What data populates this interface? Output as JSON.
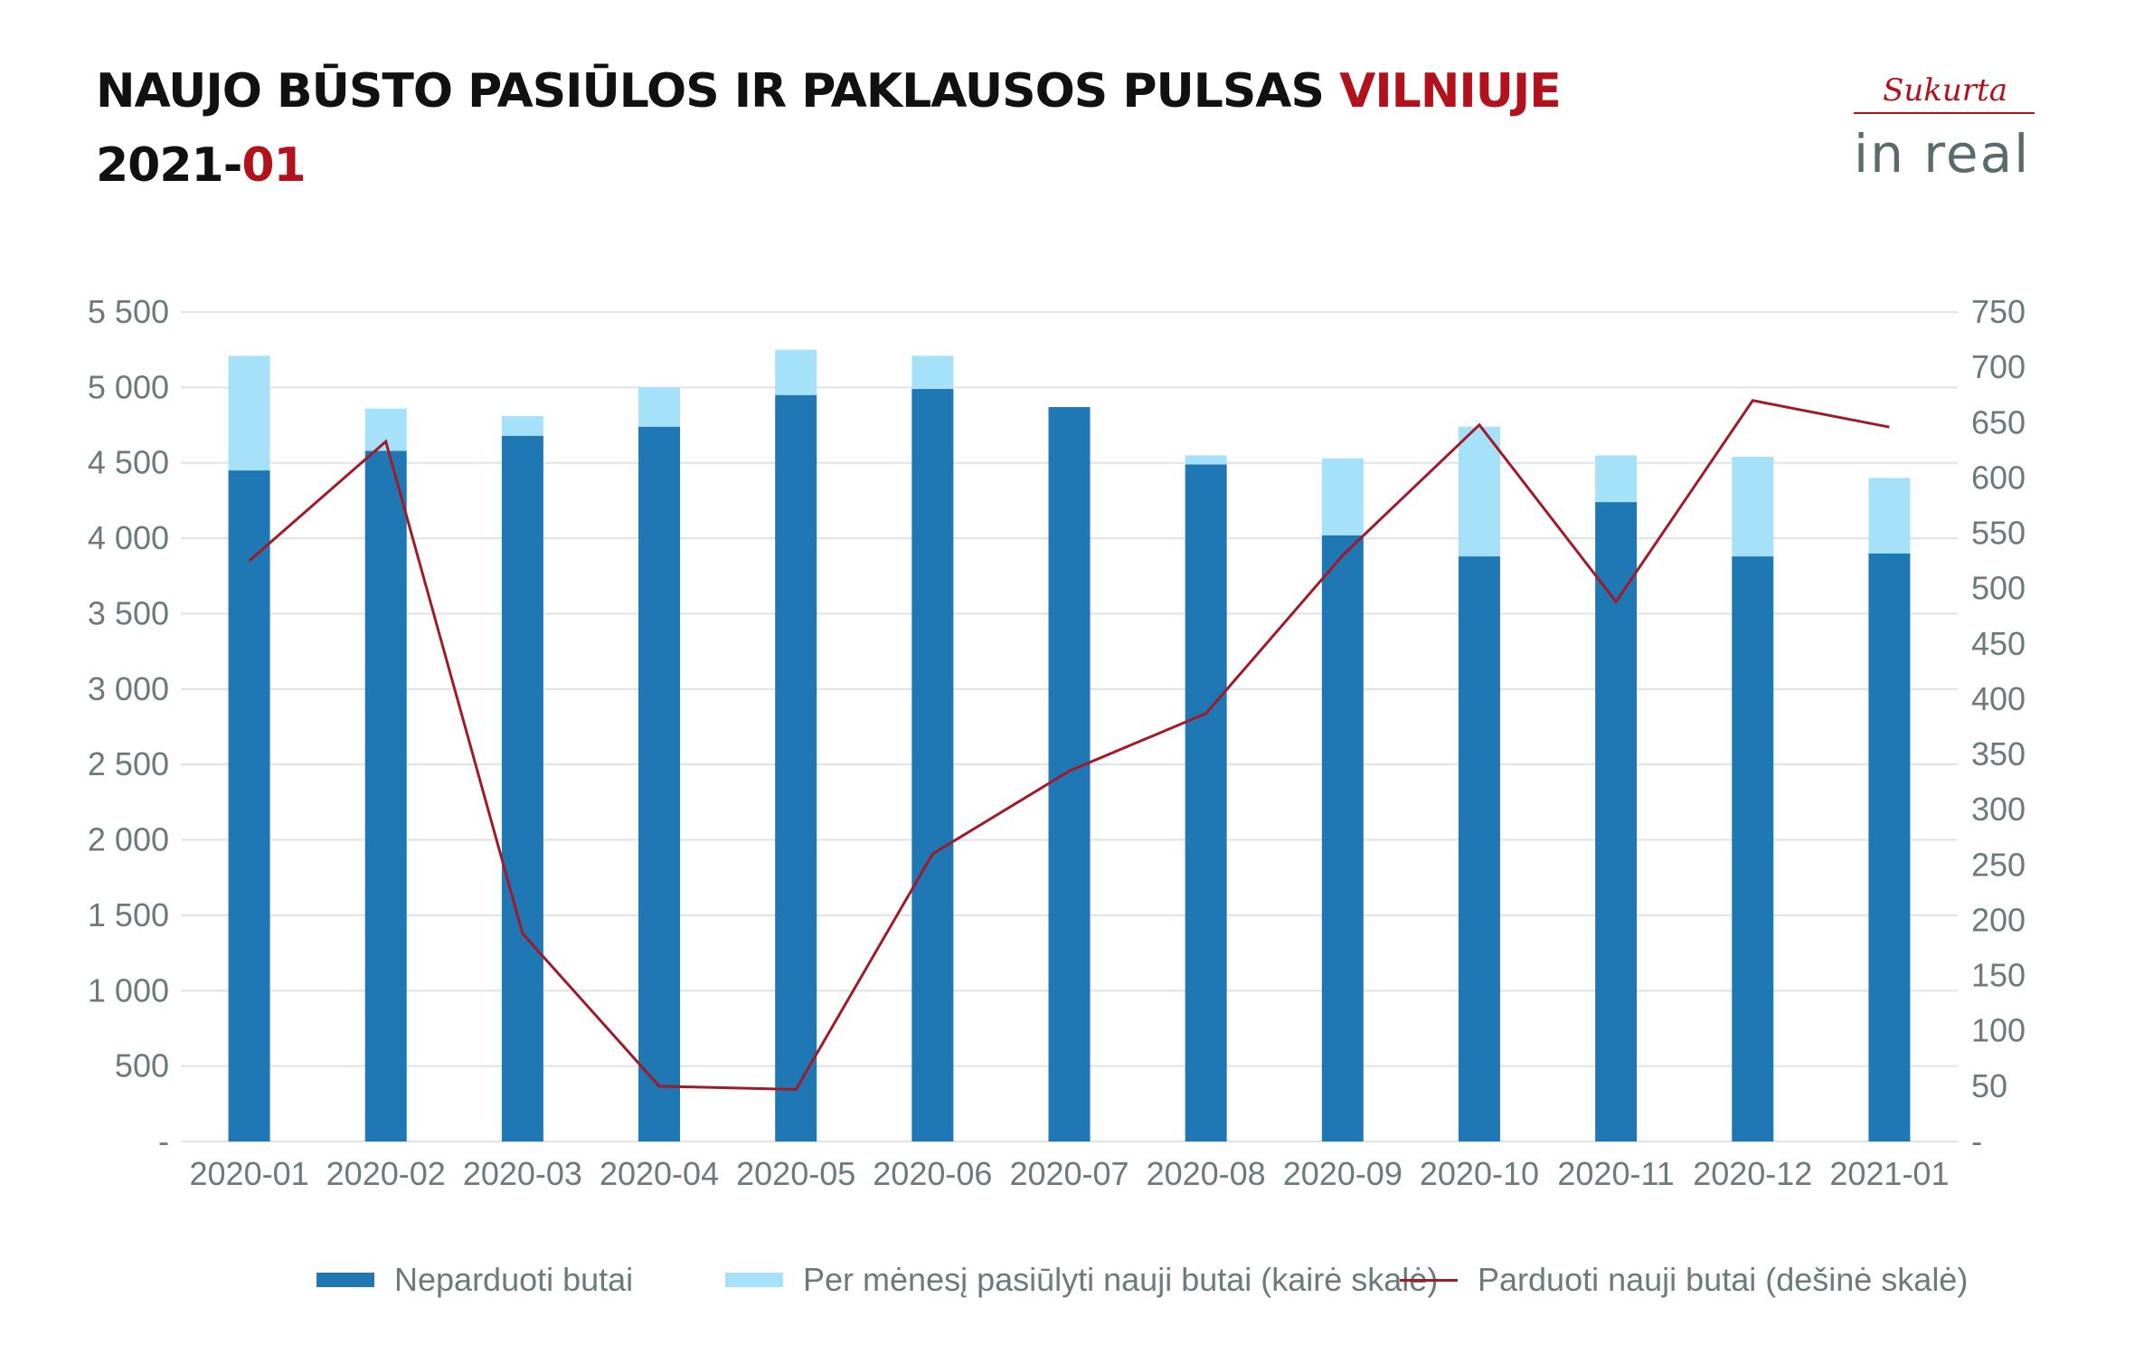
{
  "header": {
    "title_part1": "NAUJO BŪSTO PASIŪLOS IR PAKLAUSOS PULSAS ",
    "title_accent": "VILNIUJE",
    "date_part1": "2021-",
    "date_accent": "01"
  },
  "logo": {
    "small": "Sukurta",
    "big": "in real"
  },
  "colors": {
    "unsold": "#1f78b4",
    "offered": "#a6e1fa",
    "sold": "#a11a2a",
    "accent": "#b1121c"
  },
  "chart_data": {
    "type": "bar",
    "stacked": true,
    "categories": [
      "2020-01",
      "2020-02",
      "2020-03",
      "2020-04",
      "2020-05",
      "2020-06",
      "2020-07",
      "2020-08",
      "2020-09",
      "2020-10",
      "2020-11",
      "2020-12",
      "2021-01"
    ],
    "series": [
      {
        "name": "Neparduoti butai",
        "type": "bar",
        "axis": "left",
        "values": [
          4450,
          4580,
          4680,
          4740,
          4950,
          4990,
          4870,
          4490,
          4020,
          3880,
          4240,
          3880,
          3900
        ]
      },
      {
        "name": "Per mėnesį pasiūlyti nauji butai (kairė skalė)",
        "type": "bar",
        "axis": "left",
        "values": [
          760,
          280,
          130,
          260,
          300,
          220,
          0,
          60,
          510,
          860,
          310,
          660,
          500
        ]
      },
      {
        "name": "Parduoti nauji butai (dešinė skalė)",
        "type": "line",
        "axis": "right",
        "values": [
          525,
          633,
          188,
          50,
          47,
          260,
          335,
          387,
          530,
          648,
          488,
          670,
          646
        ]
      }
    ],
    "left_axis": {
      "min": 0,
      "max": 5500,
      "ticks": [
        {
          "v": 0,
          "label": "-"
        },
        {
          "v": 500,
          "label": "500"
        },
        {
          "v": 1000,
          "label": "1 000"
        },
        {
          "v": 1500,
          "label": "1 500"
        },
        {
          "v": 2000,
          "label": "2 000"
        },
        {
          "v": 2500,
          "label": "2 500"
        },
        {
          "v": 3000,
          "label": "3 000"
        },
        {
          "v": 3500,
          "label": "3 500"
        },
        {
          "v": 4000,
          "label": "4 000"
        },
        {
          "v": 4500,
          "label": "4 500"
        },
        {
          "v": 5000,
          "label": "5 000"
        },
        {
          "v": 5500,
          "label": "5 500"
        }
      ]
    },
    "right_axis": {
      "min": 0,
      "max": 750,
      "ticks": [
        {
          "v": 0,
          "label": "-"
        },
        {
          "v": 50,
          "label": "50"
        },
        {
          "v": 100,
          "label": "100"
        },
        {
          "v": 150,
          "label": "150"
        },
        {
          "v": 200,
          "label": "200"
        },
        {
          "v": 250,
          "label": "250"
        },
        {
          "v": 300,
          "label": "300"
        },
        {
          "v": 350,
          "label": "350"
        },
        {
          "v": 400,
          "label": "400"
        },
        {
          "v": 450,
          "label": "450"
        },
        {
          "v": 500,
          "label": "500"
        },
        {
          "v": 550,
          "label": "550"
        },
        {
          "v": 600,
          "label": "600"
        },
        {
          "v": 650,
          "label": "650"
        },
        {
          "v": 700,
          "label": "700"
        },
        {
          "v": 750,
          "label": "750"
        }
      ]
    },
    "grid": true,
    "legend_position": "bottom"
  }
}
